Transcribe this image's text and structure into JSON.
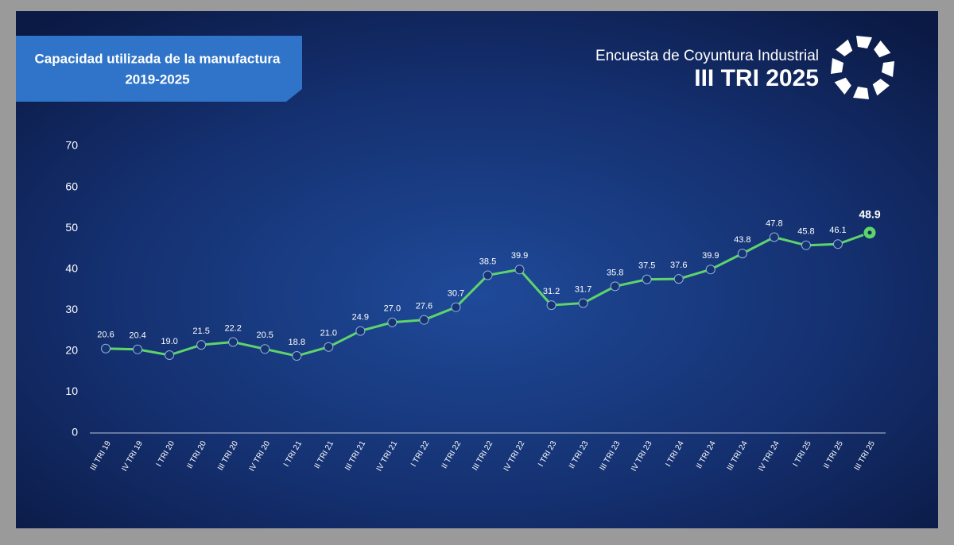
{
  "chart_data": {
    "type": "line",
    "title": "Capacidad utilizada de la manufactura",
    "subtitle": "2019-2025",
    "header": "Encuesta de Coyuntura Industrial",
    "header_period": "III TRI 2025",
    "categories": [
      "III TRI 19",
      "IV TRI 19",
      "I TRI 20",
      "II TRI 20",
      "III TRI 20",
      "IV TRI 20",
      "I TRI 21",
      "II TRI 21",
      "III TRI 21",
      "IV TRI 21",
      "I TRI 22",
      "II TRI 22",
      "III TRI 22",
      "IV TRI 22",
      "I TRI 23",
      "II TRI 23",
      "III TRI 23",
      "IV TRI 23",
      "I TRI 24",
      "II TRI 24",
      "III TRI 24",
      "IV TRI 24",
      "I TRI 25",
      "II TRI 25",
      "III TRI 25"
    ],
    "values": [
      20.6,
      20.4,
      19.0,
      21.5,
      22.2,
      20.5,
      18.8,
      21.0,
      24.9,
      27.0,
      27.6,
      30.7,
      38.5,
      39.9,
      31.2,
      31.7,
      35.8,
      37.5,
      37.6,
      39.9,
      43.8,
      47.8,
      45.8,
      46.1,
      48.9
    ],
    "value_labels": [
      "20.6",
      "20.4",
      "19.0",
      "21.5",
      "22.2",
      "20.5",
      "18.8",
      "21.0",
      "24.9",
      "27.0",
      "27.6",
      "30.7",
      "38.5",
      "39.9",
      "31.2",
      "31.7",
      "35.8",
      "37.5",
      "37.6",
      "39.9",
      "43.8",
      "47.8",
      "45.8",
      "46.1",
      "48.9"
    ],
    "color": "#5ed46b",
    "ylim": [
      0,
      70
    ],
    "yticks": [
      0,
      10,
      20,
      30,
      40,
      50,
      60,
      70
    ]
  }
}
